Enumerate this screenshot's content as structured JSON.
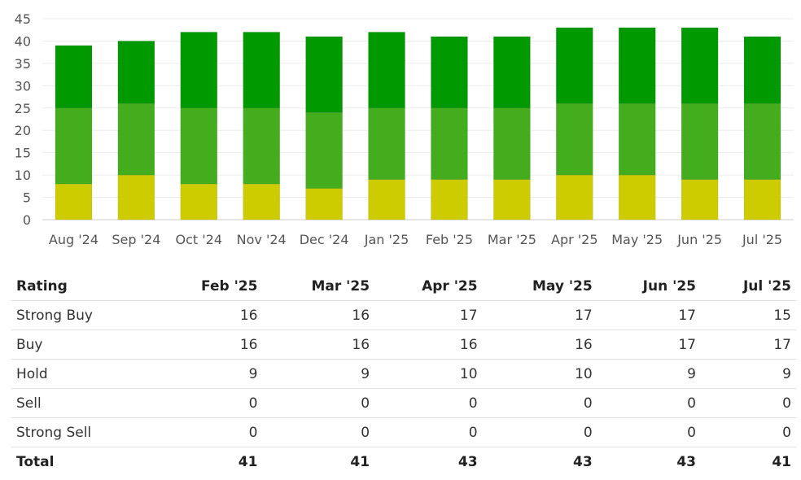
{
  "chart_data": {
    "type": "bar",
    "stacked": true,
    "categories": [
      "Aug '24",
      "Sep '24",
      "Oct '24",
      "Nov '24",
      "Dec '24",
      "Jan '25",
      "Feb '25",
      "Mar '25",
      "Apr '25",
      "May '25",
      "Jun '25",
      "Jul '25"
    ],
    "series": [
      {
        "color": "#cccc00",
        "values": [
          8,
          10,
          8,
          8,
          7,
          9,
          9,
          9,
          10,
          10,
          9,
          9
        ]
      },
      {
        "color": "#44ad1e",
        "values": [
          17,
          16,
          17,
          17,
          17,
          16,
          16,
          16,
          16,
          16,
          17,
          17
        ]
      },
      {
        "color": "#009900",
        "values": [
          14,
          14,
          17,
          17,
          17,
          17,
          16,
          16,
          17,
          17,
          17,
          15
        ]
      }
    ],
    "yticks": [
      "0",
      "5",
      "10",
      "15",
      "20",
      "25",
      "30",
      "35",
      "40",
      "45"
    ],
    "ylim": [
      0,
      45
    ],
    "grid": true
  },
  "table": {
    "headers": [
      "Rating",
      "Feb '25",
      "Mar '25",
      "Apr '25",
      "May '25",
      "Jun '25",
      "Jul '25"
    ],
    "rows": [
      {
        "label": "Strong Buy",
        "values": [
          "16",
          "16",
          "17",
          "17",
          "17",
          "15"
        ]
      },
      {
        "label": "Buy",
        "values": [
          "16",
          "16",
          "16",
          "16",
          "17",
          "17"
        ]
      },
      {
        "label": "Hold",
        "values": [
          "9",
          "9",
          "10",
          "10",
          "9",
          "9"
        ]
      },
      {
        "label": "Sell",
        "values": [
          "0",
          "0",
          "0",
          "0",
          "0",
          "0"
        ]
      },
      {
        "label": "Strong Sell",
        "values": [
          "0",
          "0",
          "0",
          "0",
          "0",
          "0"
        ]
      }
    ],
    "total": {
      "label": "Total",
      "values": [
        "41",
        "41",
        "43",
        "43",
        "43",
        "41"
      ]
    }
  }
}
